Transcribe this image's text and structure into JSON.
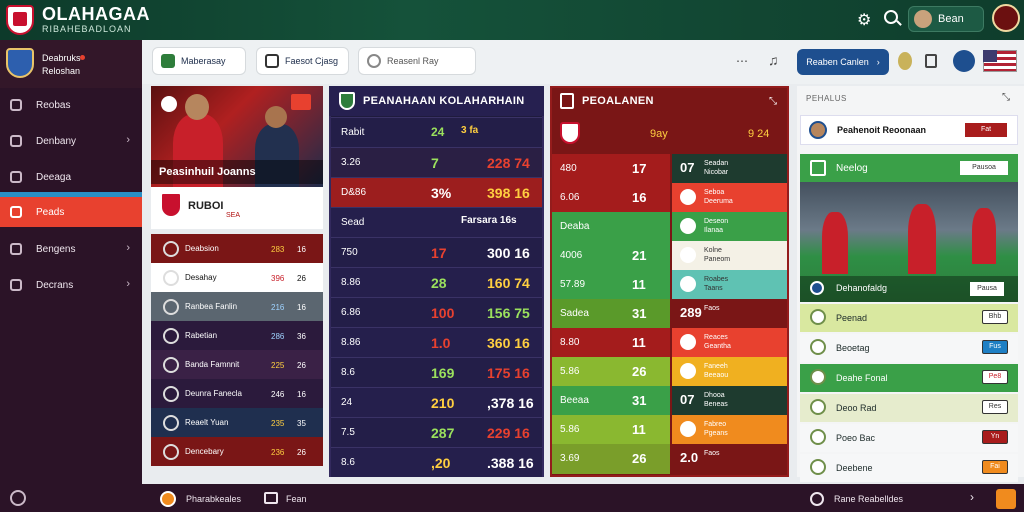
{
  "app": {
    "brand_title": "OLAHAGAA",
    "brand_subtitle": "RIBAHEBADLOAN",
    "user_name": "Bean"
  },
  "colors": {
    "topbar": "#15523a",
    "sidebar": "#2b1327",
    "accent_red": "#e8412f",
    "center_panel": "#1f1b3d",
    "red_panel": "#7a1616",
    "green": "#3aa048"
  },
  "sidebar": {
    "team_name_line1": "Deabruks",
    "team_name_line2": "Reloshan",
    "items": [
      {
        "label": "Reobas",
        "icon": "home-icon",
        "chevron": false
      },
      {
        "label": "Denbany",
        "icon": "bank-icon",
        "chevron": true
      },
      {
        "label": "Deeaga",
        "icon": "camera-icon",
        "chevron": false
      },
      {
        "label": "Peads",
        "icon": "card-icon",
        "chevron": false,
        "active": true
      },
      {
        "label": "Bengens",
        "icon": "folder-icon",
        "chevron": true
      },
      {
        "label": "Decrans",
        "icon": "globe-icon",
        "chevron": true
      }
    ]
  },
  "toolbar": {
    "chip1": "Maberasay",
    "chip2": "Faesot Cjasg",
    "search_placeholder": "Reasenl Ray",
    "cta_label": "Reaben Canlen",
    "cta_chevron": "›"
  },
  "hero": {
    "caption": "Peasinhuil Joanns",
    "label": "RUBOI",
    "sub": "SEA"
  },
  "left_table": [
    {
      "name": "Deabsion",
      "a": "283",
      "b": "16"
    },
    {
      "name": "Desahay",
      "a": "396",
      "b": "26"
    },
    {
      "name": "Ranbea Fanlin",
      "a": "216",
      "b": "16"
    },
    {
      "name": "Rabetian",
      "a": "286",
      "b": "36"
    },
    {
      "name": "Banda Famnnit",
      "a": "225",
      "b": "26"
    },
    {
      "name": "Deunra Fanecla",
      "a": "246",
      "b": "16"
    },
    {
      "name": "Reaelt Yuan",
      "a": "235",
      "b": "35"
    },
    {
      "name": "Dencebary",
      "a": "236",
      "b": "26"
    }
  ],
  "center_panel": {
    "title": "PEANAHAAN KOLAHARHAIN",
    "rows": [
      {
        "a": "Rabit",
        "b": "24",
        "c": "3 fa"
      },
      {
        "a": "3.26",
        "b": "7",
        "c": "228 74"
      },
      {
        "a": "D&86",
        "b": "3%",
        "c": "398 16"
      },
      {
        "a": "Sead",
        "b": "",
        "c": "Farsara 16s"
      },
      {
        "a": "750",
        "b": "17",
        "c": "300 16"
      },
      {
        "a": "8.86",
        "b": "28",
        "c": "160 74"
      },
      {
        "a": "6.86",
        "b": "100",
        "c": "156 75"
      },
      {
        "a": "8.86",
        "b": "1.0",
        "c": "360 16"
      },
      {
        "a": "8.6",
        "b": "169",
        "c": "175 16"
      },
      {
        "a": "24",
        "b": "210",
        "c": ",378 16"
      },
      {
        "a": "7.5",
        "b": "287",
        "c": "229 16"
      },
      {
        "a": "8.6",
        "b": ",20",
        "c": ".388 16"
      }
    ]
  },
  "red_panel": {
    "title": "PEOALANEN",
    "header": {
      "a": "9ay",
      "b": "9 24"
    },
    "rows": [
      {
        "a": "480",
        "b": "17",
        "v": "07",
        "l1": "Seadan",
        "l2": "Nicobar"
      },
      {
        "a": "6.06",
        "b": "16",
        "v": "",
        "l1": "Seboa",
        "l2": "Deeruma"
      },
      {
        "a": "Deaba",
        "b": "",
        "v": "",
        "l1": "Deseon",
        "l2": "Ilanaa"
      },
      {
        "a": "4006",
        "b": "21",
        "v": "",
        "l1": "Kolne",
        "l2": "Paneom"
      },
      {
        "a": "57.89",
        "b": "11",
        "v": "",
        "l1": "Roabes",
        "l2": "Taans"
      },
      {
        "a": "Sadea",
        "b": "31",
        "v": "289",
        "l1": "Faos",
        "l2": ""
      },
      {
        "a": "8.80",
        "b": "11",
        "v": "",
        "l1": "Reaces",
        "l2": "Geantha"
      },
      {
        "a": "5.86",
        "b": "26",
        "v": "",
        "l1": "Faneeh",
        "l2": "Beeaou"
      },
      {
        "a": "Beeaa",
        "b": "31",
        "v": "07",
        "l1": "Dhooa",
        "l2": "Beneas"
      },
      {
        "a": "5.86",
        "b": "11",
        "v": "",
        "l1": "Fabreo",
        "l2": "Pgeans"
      },
      {
        "a": "3.69",
        "b": "26",
        "v": "2.0",
        "l1": "Faos",
        "l2": ""
      }
    ]
  },
  "right_panel": {
    "title": "PEHALUS",
    "feature_name": "Peahenoit Reoonaan",
    "feature_badge": "Fat",
    "section_title": "Neelog",
    "section_btn": "Pausoa",
    "image_caption": "Dehanofaldg",
    "image_btn": "Pausa",
    "tabs": [
      {
        "label": "Peenad",
        "btn": "Bhb"
      },
      {
        "label": "Beoetag",
        "btn": "Fus"
      },
      {
        "label": "Deahe Fonal",
        "btn": "Pe8"
      },
      {
        "label": "Deoo Rad",
        "btn": "Res"
      },
      {
        "label": "Poeo Bac",
        "btn": "Yn"
      },
      {
        "label": "Deebene",
        "btn": "Fai"
      }
    ]
  },
  "bottombar": {
    "left_text": "Pharabkeales",
    "mid_text": "Fean",
    "right_text": "Rane Reabelldes"
  }
}
